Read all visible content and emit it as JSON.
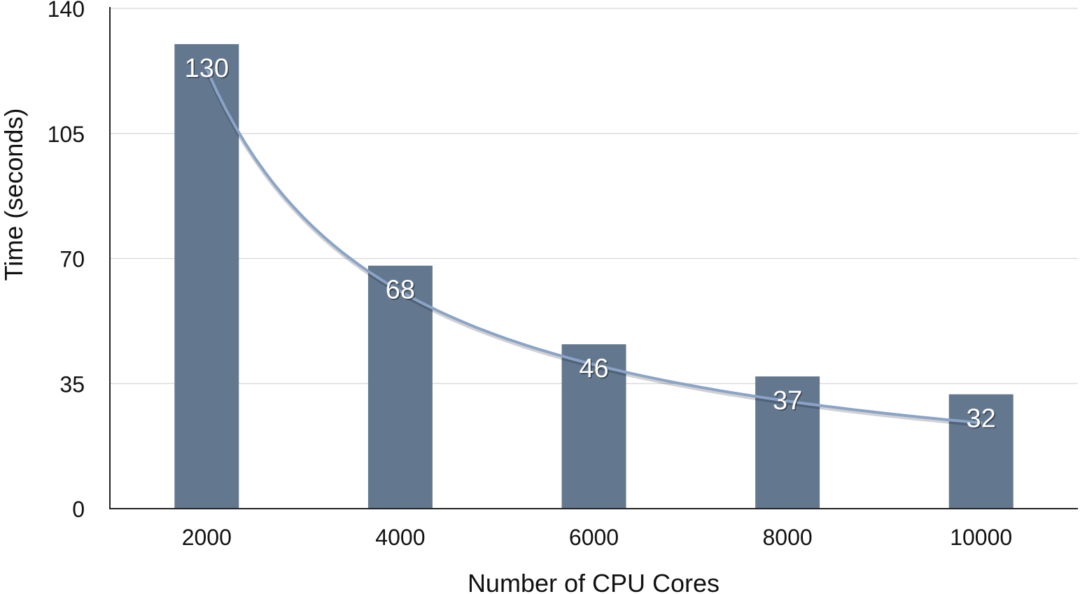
{
  "chart_data": {
    "type": "bar",
    "categories": [
      "2000",
      "4000",
      "6000",
      "8000",
      "10000"
    ],
    "values": [
      130,
      68,
      46,
      37,
      32
    ],
    "data_labels": [
      "130",
      "68",
      "46",
      "37",
      "32"
    ],
    "title": "",
    "xlabel": "Number of CPU Cores",
    "ylabel": "Time (seconds)",
    "ylim": [
      0,
      140
    ],
    "yticks": [
      0,
      35,
      70,
      105,
      140
    ],
    "ytick_labels": [
      "0",
      "35",
      "70",
      "105",
      "140"
    ],
    "grid": true,
    "legend": "none",
    "trendline": {
      "type": "power",
      "from": 123,
      "to": 24
    },
    "colors": {
      "bar": "#63788f",
      "trendline": "#8aa3c8",
      "grid": "#dddddd",
      "axis": "#222222"
    }
  }
}
